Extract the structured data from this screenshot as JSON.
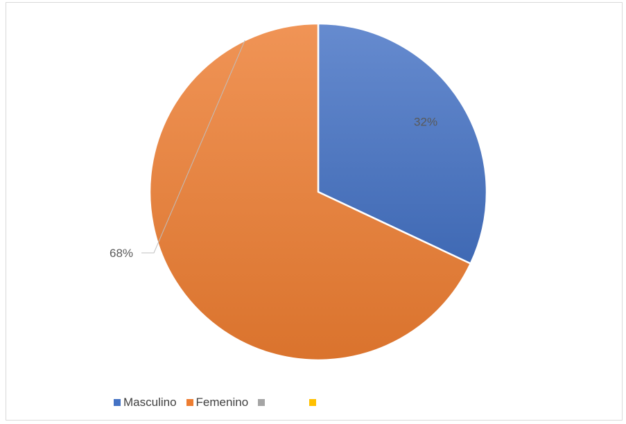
{
  "chart_data": {
    "type": "pie",
    "title": "",
    "slices": [
      {
        "label": "Masculino",
        "value": 32,
        "data_label": "32%",
        "color": "#4472C4"
      },
      {
        "label": "Femenino",
        "value": 68,
        "data_label": "68%",
        "color": "#ED7D31"
      }
    ],
    "legend": {
      "position": "bottom",
      "entries": [
        {
          "label": "Masculino",
          "color": "#4472C4"
        },
        {
          "label": "Femenino",
          "color": "#ED7D31"
        },
        {
          "label": "",
          "color": "#A5A5A5"
        },
        {
          "label": "",
          "color": "#FFC000"
        }
      ]
    }
  }
}
